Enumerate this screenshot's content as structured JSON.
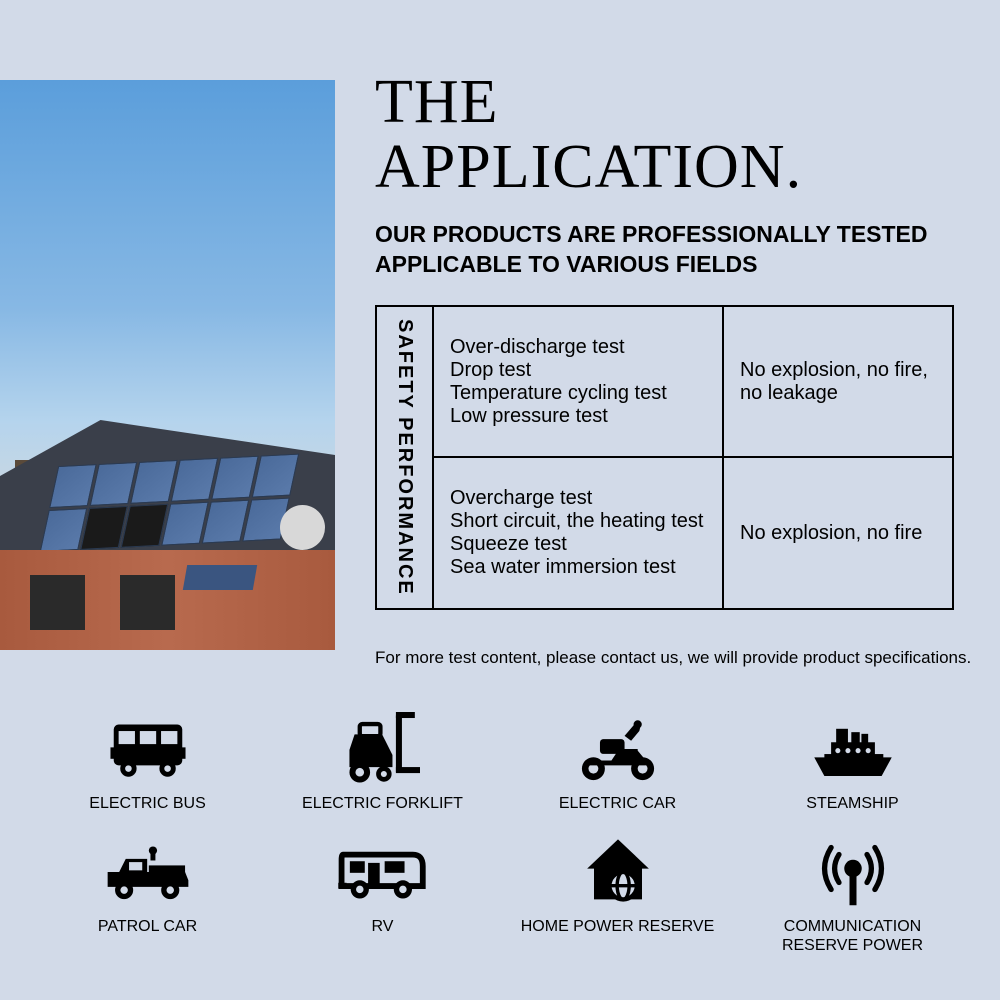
{
  "title_line1": "THE",
  "title_line2": "APPLICATION.",
  "subtitle_line1": "OUR PRODUCTS ARE PROFESSIONALLY TESTED",
  "subtitle_line2": "APPLICABLE TO VARIOUS FIELDS",
  "table": {
    "row_header": "SAFETY PERFORMANCE",
    "rows": [
      {
        "tests": [
          "Over-discharge test",
          "Drop test",
          "Temperature cycling test",
          "Low pressure test"
        ],
        "result": "No explosion, no fire,\n no leakage"
      },
      {
        "tests": [
          "Overcharge test",
          "Short circuit, the heating test",
          "Squeeze test",
          "Sea water immersion test"
        ],
        "result": "No explosion, no fire"
      }
    ]
  },
  "footnote": "For more test content, please contact us, we will provide product specifications.",
  "icons": [
    {
      "label": "ELECTRIC BUS",
      "name": "bus-icon"
    },
    {
      "label": "ELECTRIC FORKLIFT",
      "name": "forklift-icon"
    },
    {
      "label": "ELECTRIC CAR",
      "name": "scooter-icon"
    },
    {
      "label": "STEAMSHIP",
      "name": "ship-icon"
    },
    {
      "label": "PATROL CAR",
      "name": "truck-icon"
    },
    {
      "label": "RV",
      "name": "rv-icon"
    },
    {
      "label": "HOME POWER RESERVE",
      "name": "home-icon"
    },
    {
      "label": "COMMUNICATION RESERVE POWER",
      "name": "antenna-icon"
    }
  ],
  "colors": {
    "background": "#d2dae8",
    "text": "#000000",
    "sky_top": "#5b9edb",
    "sky_bottom": "#cdd8e0"
  }
}
